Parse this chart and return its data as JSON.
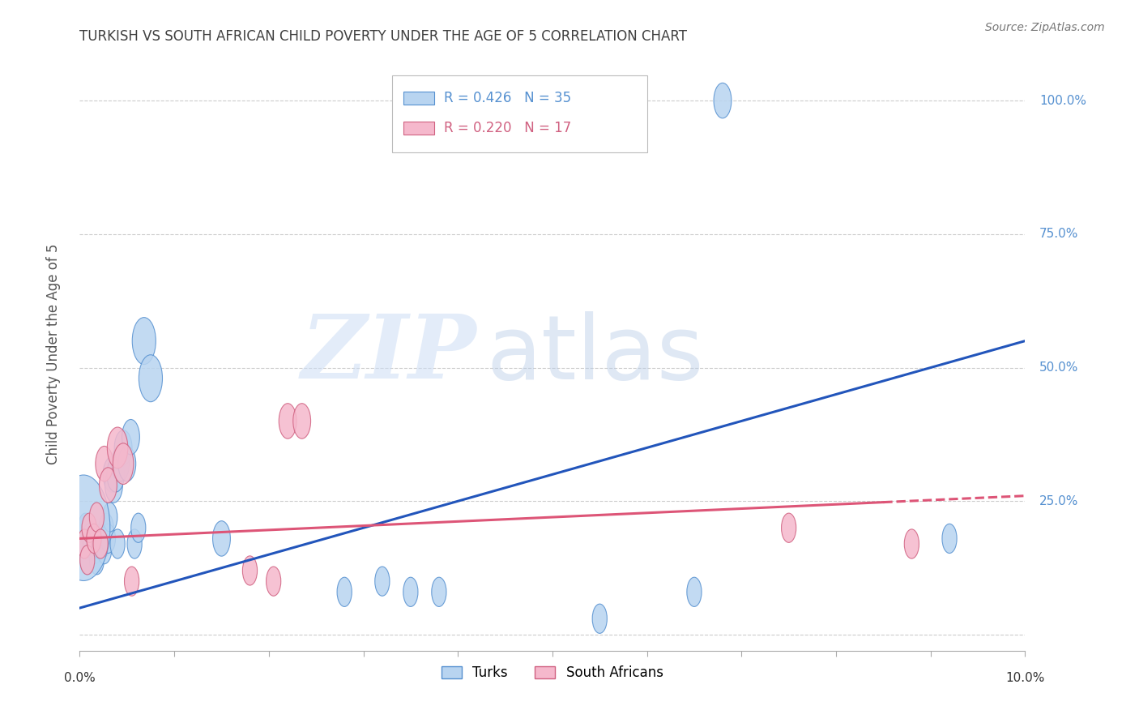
{
  "title": "TURKISH VS SOUTH AFRICAN CHILD POVERTY UNDER THE AGE OF 5 CORRELATION CHART",
  "source": "Source: ZipAtlas.com",
  "ylabel": "Child Poverty Under the Age of 5",
  "ytick_values": [
    0,
    25,
    50,
    75,
    100
  ],
  "xlim": [
    0,
    10
  ],
  "ylim": [
    -3,
    108
  ],
  "turks_R": 0.426,
  "turks_N": 35,
  "sa_R": 0.22,
  "sa_N": 17,
  "turks_color": "#b8d4f0",
  "turks_edge_color": "#5590d0",
  "sa_color": "#f5b8cc",
  "sa_edge_color": "#d06080",
  "trend_turks_color": "#2255bb",
  "trend_sa_color": "#dd5577",
  "title_color": "#404040",
  "axis_color": "#5590d0",
  "turks_x": [
    0.04,
    0.06,
    0.08,
    0.1,
    0.12,
    0.14,
    0.16,
    0.18,
    0.2,
    0.22,
    0.24,
    0.26,
    0.28,
    0.3,
    0.32,
    0.34,
    0.36,
    0.38,
    0.4,
    0.43,
    0.46,
    0.5,
    0.54,
    0.58,
    0.62,
    0.68,
    0.75,
    1.5,
    2.8,
    3.2,
    3.5,
    3.8,
    5.5,
    6.5,
    9.2
  ],
  "turks_y": [
    17,
    20,
    14,
    18,
    17,
    18,
    16,
    14,
    17,
    18,
    17,
    16,
    20,
    18,
    22,
    30,
    28,
    30,
    17,
    32,
    35,
    32,
    37,
    17,
    20,
    55,
    48,
    18,
    8,
    10,
    8,
    8,
    3,
    8,
    18
  ],
  "turks_size": [
    5,
    5,
    5,
    5,
    5,
    5,
    5,
    5,
    5,
    5,
    5,
    5,
    5,
    5,
    5,
    6,
    6,
    6,
    5,
    6,
    6,
    6,
    6,
    5,
    5,
    8,
    8,
    6,
    5,
    5,
    5,
    5,
    5,
    5,
    5
  ],
  "turks_big_x": [
    0.04
  ],
  "turks_big_y": [
    20
  ],
  "turks_big_size": [
    18
  ],
  "turks_outlier_x": [
    6.8
  ],
  "turks_outlier_y": [
    100
  ],
  "turks_outlier_size": [
    6
  ],
  "sa_x": [
    0.05,
    0.08,
    0.1,
    0.15,
    0.18,
    0.22,
    0.26,
    0.3,
    0.4,
    0.46,
    0.55,
    1.8,
    2.05,
    2.2,
    2.35,
    7.5,
    8.8
  ],
  "sa_y": [
    17,
    14,
    20,
    18,
    22,
    17,
    32,
    28,
    35,
    32,
    10,
    12,
    10,
    40,
    40,
    20,
    17
  ],
  "sa_size": [
    5,
    5,
    5,
    5,
    5,
    5,
    6,
    6,
    7,
    7,
    5,
    5,
    5,
    6,
    6,
    5,
    5
  ],
  "trend_turks_x0": 0,
  "trend_turks_y0": 5,
  "trend_turks_x1": 10,
  "trend_turks_y1": 55,
  "trend_sa_x0": 0,
  "trend_sa_y0": 18,
  "trend_sa_x1": 10,
  "trend_sa_y1": 26,
  "trend_sa_solid_end": 8.5
}
